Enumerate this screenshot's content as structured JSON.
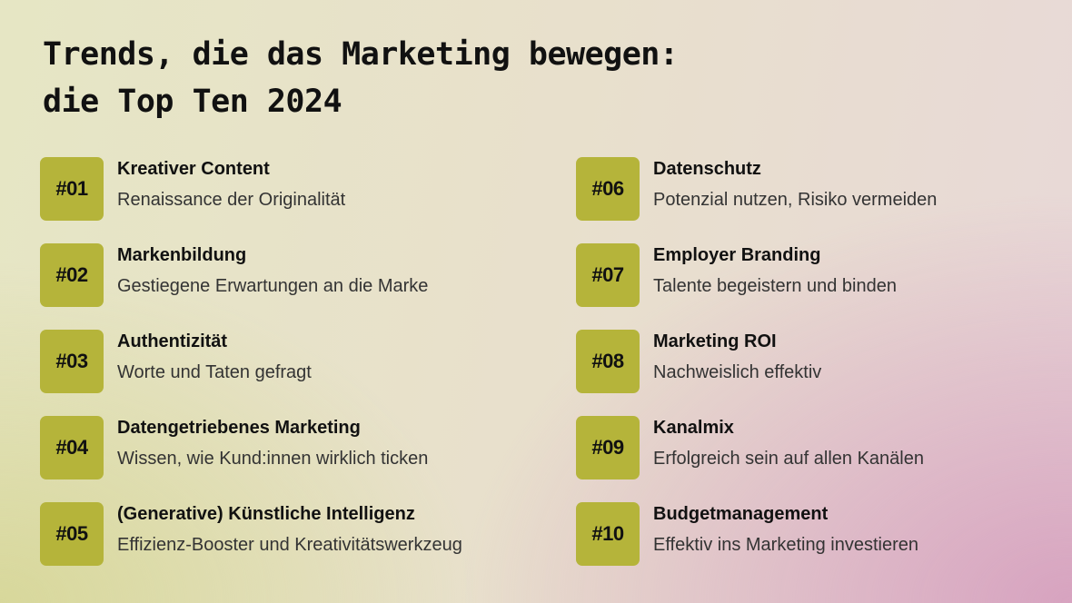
{
  "title": {
    "line1": "Trends, die das Marketing bewegen:",
    "line2": "die Top Ten 2024"
  },
  "accent_color": "#b5b43a",
  "items": [
    {
      "number": "#01",
      "title": "Kreativer Content",
      "subtitle": "Renaissance der Originalität"
    },
    {
      "number": "#02",
      "title": "Markenbildung",
      "subtitle": "Gestiegene Erwartungen an die Marke"
    },
    {
      "number": "#03",
      "title": "Authentizität",
      "subtitle": "Worte und Taten gefragt"
    },
    {
      "number": "#04",
      "title": "Datengetriebenes Marketing",
      "subtitle": "Wissen, wie Kund:innen wirklich ticken"
    },
    {
      "number": "#05",
      "title": "(Generative) Künstliche Intelligenz",
      "subtitle": "Effizienz-Booster und Kreativitätswerkzeug"
    },
    {
      "number": "#06",
      "title": "Datenschutz",
      "subtitle": "Potenzial nutzen, Risiko vermeiden"
    },
    {
      "number": "#07",
      "title": "Employer Branding",
      "subtitle": "Talente begeistern und binden"
    },
    {
      "number": "#08",
      "title": "Marketing ROI",
      "subtitle": "Nachweislich effektiv"
    },
    {
      "number": "#09",
      "title": "Kanalmix",
      "subtitle": "Erfolgreich sein auf allen Kanälen"
    },
    {
      "number": "#10",
      "title": "Budgetmanagement",
      "subtitle": "Effektiv ins Marketing investieren"
    }
  ]
}
